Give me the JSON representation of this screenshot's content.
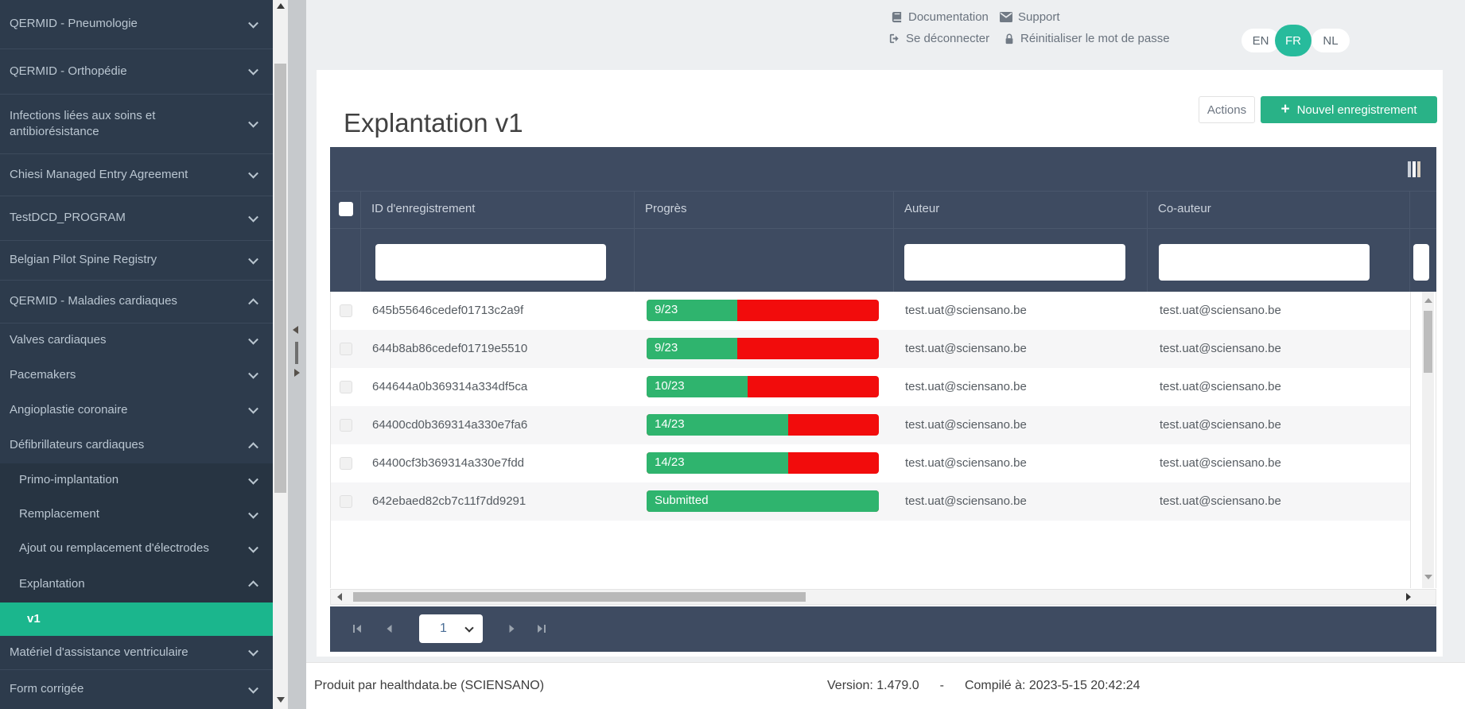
{
  "header": {
    "links": [
      {
        "label": "Documentation",
        "icon": "book-icon"
      },
      {
        "label": "Support",
        "icon": "envelope-icon"
      },
      {
        "label": "Se déconnecter",
        "icon": "sign-out-icon"
      },
      {
        "label": "Réinitialiser le mot de passe",
        "icon": "lock-icon"
      }
    ],
    "languages": [
      {
        "code": "EN",
        "active": false
      },
      {
        "code": "FR",
        "active": true
      },
      {
        "code": "NL",
        "active": false
      }
    ]
  },
  "sidebar": {
    "items": [
      {
        "label": "QERMID - Pneumologie",
        "level": 0,
        "chevron": "down"
      },
      {
        "label": "QERMID - Orthopédie",
        "level": 0,
        "chevron": "down"
      },
      {
        "label": "Infections liées aux soins et antibiorésistance",
        "level": 0,
        "chevron": "down"
      },
      {
        "label": "Chiesi Managed Entry Agreement",
        "level": 0,
        "chevron": "down"
      },
      {
        "label": "TestDCD_PROGRAM",
        "level": 0,
        "chevron": "down"
      },
      {
        "label": "Belgian Pilot Spine Registry",
        "level": 0,
        "chevron": "down"
      },
      {
        "label": "QERMID - Maladies cardiaques",
        "level": 0,
        "chevron": "up"
      },
      {
        "label": "Valves cardiaques",
        "level": 1,
        "chevron": "down"
      },
      {
        "label": "Pacemakers",
        "level": 1,
        "chevron": "down"
      },
      {
        "label": "Angioplastie coronaire",
        "level": 1,
        "chevron": "down"
      },
      {
        "label": "Défibrillateurs cardiaques",
        "level": 1,
        "chevron": "up"
      },
      {
        "label": "Primo-implantation",
        "level": 2,
        "chevron": "down"
      },
      {
        "label": "Remplacement",
        "level": 2,
        "chevron": "down"
      },
      {
        "label": "Ajout ou remplacement d'électrodes",
        "level": 2,
        "chevron": "down"
      },
      {
        "label": "Explantation",
        "level": 2,
        "chevron": "up"
      },
      {
        "label": "v1",
        "level": 3,
        "chevron": "none",
        "selected": true
      },
      {
        "label": "Matériel d'assistance ventriculaire",
        "level": 1,
        "chevron": "down"
      },
      {
        "label": "Form corrigée",
        "level": 0,
        "chevron": "down"
      }
    ]
  },
  "page": {
    "title": "Explantation v1",
    "actions_button": "Actions",
    "new_record_button": "Nouvel enregistrement",
    "new_record_icon": "plus-icon"
  },
  "table": {
    "columns": [
      "ID d'enregistrement",
      "Progrès",
      "Auteur",
      "Co-auteur"
    ],
    "filters": {
      "id": "",
      "auteur": "",
      "coauteur": ""
    },
    "column_chooser_icon": "columns-icon",
    "rows": [
      {
        "id": "645b55646cedef01713c2a9f",
        "progress": {
          "label": "9/23",
          "value": 9,
          "total": 23,
          "submitted": false
        },
        "author": "test.uat@sciensano.be",
        "coauthor": "test.uat@sciensano.be"
      },
      {
        "id": "644b8ab86cedef01719e5510",
        "progress": {
          "label": "9/23",
          "value": 9,
          "total": 23,
          "submitted": false
        },
        "author": "test.uat@sciensano.be",
        "coauthor": "test.uat@sciensano.be"
      },
      {
        "id": "644644a0b369314a334df5ca",
        "progress": {
          "label": "10/23",
          "value": 10,
          "total": 23,
          "submitted": false
        },
        "author": "test.uat@sciensano.be",
        "coauthor": "test.uat@sciensano.be"
      },
      {
        "id": "64400cd0b369314a330e7fa6",
        "progress": {
          "label": "14/23",
          "value": 14,
          "total": 23,
          "submitted": false
        },
        "author": "test.uat@sciensano.be",
        "coauthor": "test.uat@sciensano.be"
      },
      {
        "id": "64400cf3b369314a330e7fdd",
        "progress": {
          "label": "14/23",
          "value": 14,
          "total": 23,
          "submitted": false
        },
        "author": "test.uat@sciensano.be",
        "coauthor": "test.uat@sciensano.be"
      },
      {
        "id": "642ebaed82cb7c11f7dd9291",
        "progress": {
          "label": "Submitted",
          "value": 23,
          "total": 23,
          "submitted": true
        },
        "author": "test.uat@sciensano.be",
        "coauthor": "test.uat@sciensano.be"
      }
    ]
  },
  "pagination": {
    "page": "1"
  },
  "footer": {
    "produced_by": "Produit par healthdata.be (SCIENSANO)",
    "version": "Version: 1.479.0",
    "separator": "-",
    "compiled": "Compilé à: 2023-5-15 20:42:24"
  },
  "colors": {
    "accent_green": "#29b287",
    "selected_green": "#1bb68d",
    "language_green": "#27bb9c",
    "progress_green": "#2fb46e",
    "progress_red": "#f20c0c",
    "table_navy": "#3e4b61",
    "sidebar_navy": "#2d3b4c"
  }
}
